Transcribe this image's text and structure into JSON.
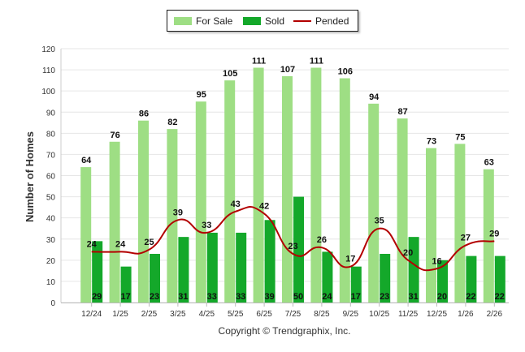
{
  "chart_data": {
    "type": "bar",
    "ylabel": "Number of Homes",
    "xlabel": "",
    "ylim": [
      0,
      120
    ],
    "yticks": [
      0,
      10,
      20,
      30,
      40,
      50,
      60,
      70,
      80,
      90,
      100,
      110,
      120
    ],
    "grid": true,
    "legend_position": "top-center",
    "categories": [
      "12/24",
      "1/25",
      "2/25",
      "3/25",
      "4/25",
      "5/25",
      "6/25",
      "7/25",
      "8/25",
      "9/25",
      "10/25",
      "11/25",
      "12/25",
      "1/26",
      "2/26"
    ],
    "series": [
      {
        "name": "For Sale",
        "kind": "bar",
        "color": "#9ede84",
        "values": [
          64,
          76,
          86,
          82,
          95,
          105,
          111,
          107,
          111,
          106,
          94,
          87,
          73,
          75,
          63
        ]
      },
      {
        "name": "Sold",
        "kind": "bar",
        "color": "#14a82a",
        "values": [
          29,
          17,
          23,
          31,
          33,
          33,
          39,
          50,
          24,
          17,
          23,
          31,
          20,
          22,
          22
        ]
      },
      {
        "name": "Pended",
        "kind": "line",
        "color": "#b30000",
        "values": [
          24,
          24,
          25,
          39,
          33,
          43,
          42,
          23,
          26,
          17,
          35,
          20,
          16,
          27,
          29
        ]
      }
    ]
  },
  "footer": {
    "copyright": "Copyright © Trendgraphix, Inc."
  }
}
